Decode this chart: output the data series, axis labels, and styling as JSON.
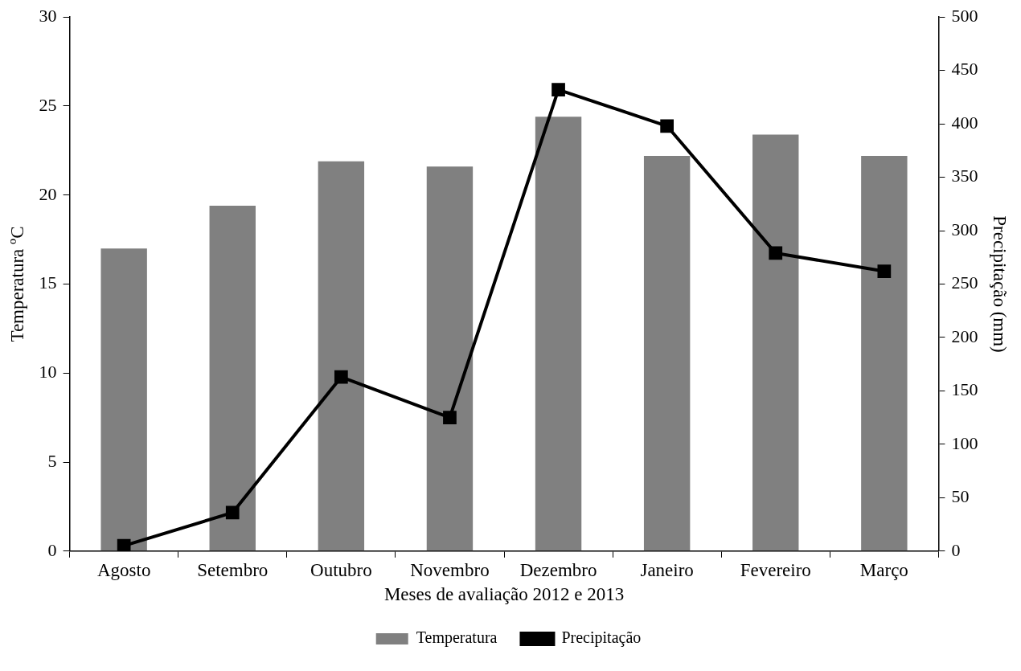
{
  "chart_data": {
    "type": "bar",
    "xlabel": "Meses de avaliação 2012 e 2013",
    "ylabel": "Temperatura ºC",
    "y2label": "Precipitação (mm)",
    "categories": [
      "Agosto",
      "Setembro",
      "Outubro",
      "Novembro",
      "Dezembro",
      "Janeiro",
      "Fevereiro",
      "Março"
    ],
    "series": [
      {
        "name": "Temperatura",
        "color": "#808080",
        "values": [
          17.0,
          19.4,
          21.9,
          21.6,
          24.4,
          22.2,
          23.4,
          22.2
        ]
      },
      {
        "name": "Precipitação",
        "type": "line",
        "axis": "y2",
        "color": "#000000",
        "values": [
          5,
          36,
          163,
          125,
          432,
          398,
          279,
          262
        ]
      }
    ],
    "ylim": [
      0,
      30
    ],
    "yticks": [
      0,
      5,
      10,
      15,
      20,
      25,
      30
    ],
    "y2lim": [
      0,
      500
    ],
    "y2ticks": [
      0,
      50,
      100,
      150,
      200,
      250,
      300,
      350,
      400,
      450,
      500
    ],
    "grid": false,
    "legend": "bottom",
    "marker": "square",
    "line_style": "solid"
  }
}
